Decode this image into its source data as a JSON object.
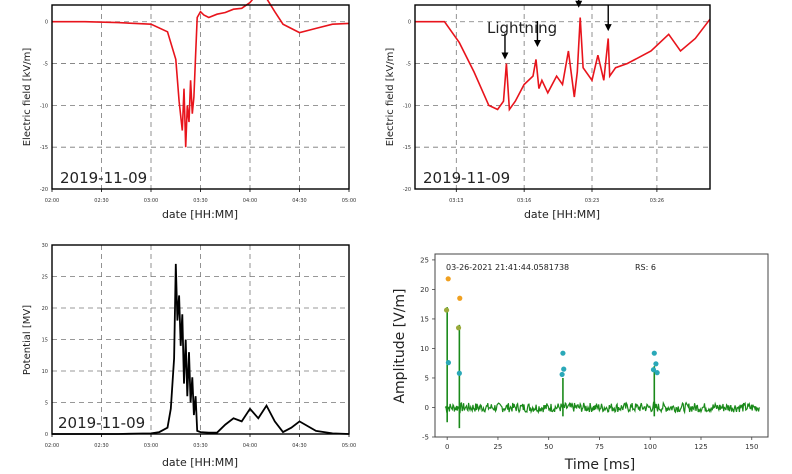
{
  "chart_data": [
    {
      "id": "ef-left",
      "type": "line",
      "xlabel": "date [HH:MM]",
      "ylabel": "Electric field [kV/m]",
      "annotation": "2019-11-09",
      "x_ticks": [
        "02:00",
        "02:30",
        "03:00",
        "03:30",
        "04:00",
        "04:30",
        "05:00"
      ],
      "y_ticks": [
        "0",
        "-5",
        "-10",
        "-15",
        "-20"
      ],
      "xlim": [
        "02:00",
        "05:00"
      ],
      "ylim": [
        -20,
        2
      ],
      "color": "#e8141c",
      "grid": true,
      "series": [
        {
          "x": [
            "02:00",
            "02:20",
            "02:40",
            "03:00",
            "03:10",
            "03:15",
            "03:17",
            "03:19",
            "03:20",
            "03:21",
            "03:22",
            "03:23",
            "03:24",
            "03:25",
            "03:26",
            "03:27",
            "03:28",
            "03:30",
            "03:32",
            "03:35",
            "03:40",
            "03:45",
            "03:50",
            "03:55",
            "04:00",
            "04:05",
            "04:10",
            "04:15",
            "04:20",
            "04:30",
            "04:40",
            "04:50",
            "05:00"
          ],
          "y": [
            0,
            0,
            -0.1,
            -0.3,
            -1.2,
            -4.5,
            -9.5,
            -13,
            -8,
            -15,
            -10,
            -12,
            -7,
            -11,
            -9,
            -4,
            0.5,
            1.2,
            0.8,
            0.5,
            0.9,
            1.1,
            1.5,
            1.6,
            2.3,
            3.5,
            2.8,
            1.2,
            -0.3,
            -1.3,
            -0.8,
            -0.3,
            -0.2
          ]
        }
      ]
    },
    {
      "id": "ef-right",
      "type": "line",
      "title": "Lightning",
      "xlabel": "date [HH:MM]",
      "ylabel": "Electric field [kV/m]",
      "annotation": "2019-11-09",
      "x_ticks": [
        "03:13",
        "03:16",
        "03:23",
        "03:26"
      ],
      "y_ticks": [
        "0",
        "-5",
        "-10",
        "-15",
        "-20"
      ],
      "ylim": [
        -20,
        2
      ],
      "color": "#e8141c",
      "grid": true,
      "markers": [
        {
          "x": 0.305,
          "y": -5
        },
        {
          "x": 0.415,
          "y": -3.5
        },
        {
          "x": 0.555,
          "y": 1.2
        },
        {
          "x": 0.655,
          "y": -1.6
        }
      ],
      "series": [
        {
          "x": [
            0.0,
            0.1,
            0.15,
            0.2,
            0.25,
            0.28,
            0.3,
            0.31,
            0.32,
            0.34,
            0.37,
            0.4,
            0.41,
            0.42,
            0.43,
            0.45,
            0.48,
            0.5,
            0.52,
            0.54,
            0.55,
            0.56,
            0.57,
            0.6,
            0.62,
            0.64,
            0.655,
            0.66,
            0.68,
            0.72,
            0.8,
            0.86,
            0.9,
            0.95,
            1.0
          ],
          "y": [
            0,
            0,
            -2.5,
            -6,
            -10,
            -10.5,
            -9.5,
            -5,
            -10.5,
            -9.5,
            -7.5,
            -6.5,
            -4.5,
            -8,
            -7,
            -8.5,
            -6.5,
            -7.5,
            -3.5,
            -9,
            -6,
            0.5,
            -5.5,
            -7,
            -4,
            -7,
            -2,
            -6.5,
            -5.5,
            -5,
            -3.5,
            -1.5,
            -3.5,
            -2,
            0.3
          ]
        }
      ]
    },
    {
      "id": "potential",
      "type": "line",
      "xlabel": "date [HH:MM]",
      "ylabel": "Potential [MV]",
      "annotation": "2019-11-09",
      "x_ticks": [
        "02:00",
        "02:30",
        "03:00",
        "03:30",
        "04:00",
        "04:30",
        "05:00"
      ],
      "y_ticks": [
        "0",
        "5",
        "10",
        "15",
        "20",
        "25",
        "30"
      ],
      "xlim": [
        "02:00",
        "05:00"
      ],
      "ylim": [
        0,
        30
      ],
      "color": "#000000",
      "grid": true,
      "series": [
        {
          "x": [
            "02:00",
            "02:20",
            "02:40",
            "03:00",
            "03:05",
            "03:10",
            "03:12",
            "03:14",
            "03:15",
            "03:16",
            "03:17",
            "03:18",
            "03:19",
            "03:20",
            "03:21",
            "03:22",
            "03:23",
            "03:24",
            "03:25",
            "03:26",
            "03:27",
            "03:28",
            "03:30",
            "03:35",
            "03:40",
            "03:45",
            "03:50",
            "03:55",
            "04:00",
            "04:05",
            "04:10",
            "04:15",
            "04:20",
            "04:25",
            "04:30",
            "04:40",
            "04:50",
            "05:00"
          ],
          "y": [
            0,
            0,
            0,
            0.1,
            0.3,
            1,
            4,
            12,
            27,
            18,
            22,
            14,
            19,
            8,
            15,
            6,
            13,
            5,
            9,
            3,
            6,
            0.5,
            0.3,
            0.2,
            0.2,
            1.5,
            2.5,
            2.0,
            4.0,
            2.5,
            4.5,
            2.0,
            0.3,
            1.0,
            2.0,
            0.5,
            0.1,
            0
          ]
        }
      ]
    },
    {
      "id": "amplitude",
      "type": "line",
      "xlabel": "Time [ms]",
      "ylabel": "Amplitude [V/m]",
      "timestamp": "03-26-2021 21:41:44.0581738",
      "station": "RS: 6",
      "x_ticks": [
        0,
        25,
        50,
        75,
        100,
        125,
        150
      ],
      "y_ticks": [
        -5,
        0,
        5,
        10,
        15,
        20,
        25
      ],
      "xlim": [
        -6,
        158
      ],
      "ylim": [
        -5,
        26
      ],
      "grid": false,
      "color": "#1a8a1a",
      "spikes": [
        {
          "x": 0,
          "top": 17,
          "bottom": -2.5
        },
        {
          "x": 6,
          "top": 14,
          "bottom": -3.5
        },
        {
          "x": 57,
          "top": 5,
          "bottom": -1.5
        },
        {
          "x": 102,
          "top": 7,
          "bottom": -1.5
        }
      ],
      "points": [
        {
          "x": 0.5,
          "y": 21.8,
          "color": "#f0a020"
        },
        {
          "x": 6.2,
          "y": 18.5,
          "color": "#f0a020"
        },
        {
          "x": -0.3,
          "y": 16.5,
          "color": "#9aaa3a"
        },
        {
          "x": 5.6,
          "y": 13.5,
          "color": "#9aaa3a"
        },
        {
          "x": 0.6,
          "y": 7.6,
          "color": "#2aa8b8"
        },
        {
          "x": 6.0,
          "y": 5.8,
          "color": "#2aa8b8"
        },
        {
          "x": 57.0,
          "y": 9.2,
          "color": "#2aa8b8"
        },
        {
          "x": 57.4,
          "y": 6.5,
          "color": "#2aa8b8"
        },
        {
          "x": 56.6,
          "y": 5.6,
          "color": "#2aa8b8"
        },
        {
          "x": 102.0,
          "y": 9.2,
          "color": "#2aa8b8"
        },
        {
          "x": 101.6,
          "y": 6.4,
          "color": "#2aa8b8"
        },
        {
          "x": 102.8,
          "y": 7.4,
          "color": "#2aa8b8"
        },
        {
          "x": 103.4,
          "y": 5.9,
          "color": "#2aa8b8"
        }
      ]
    }
  ]
}
